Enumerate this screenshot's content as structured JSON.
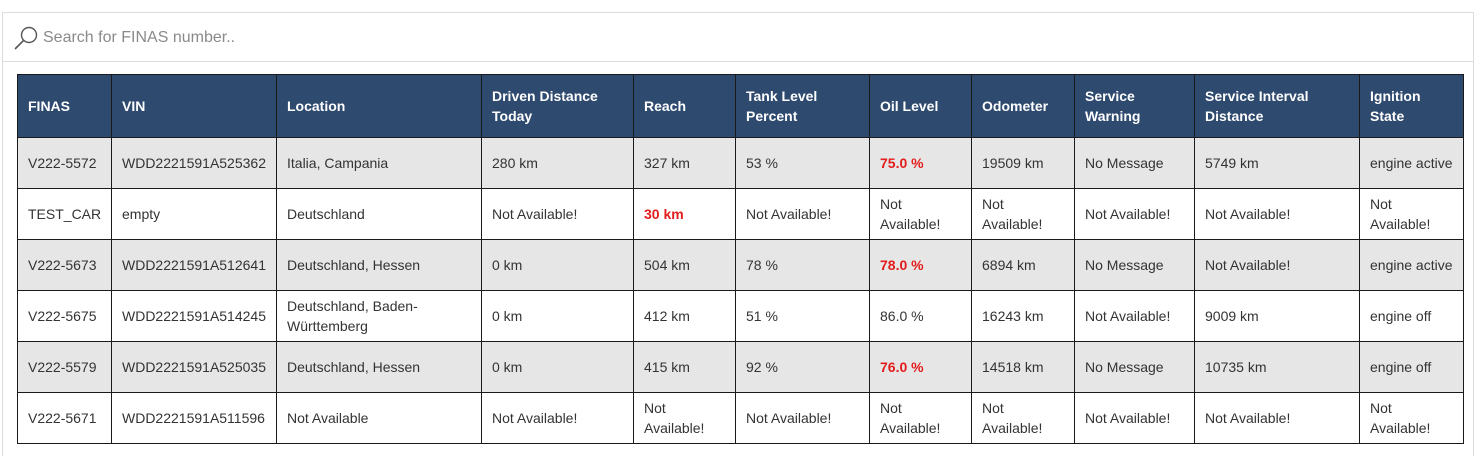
{
  "search": {
    "placeholder": "Search for FINAS number..",
    "value": "",
    "icon": "search-icon"
  },
  "table": {
    "columns": [
      "FINAS",
      "VIN",
      "Location",
      "Driven Distance Today",
      "Reach",
      "Tank Level Percent",
      "Oil Level",
      "Odometer",
      "Service Warning",
      "Service Interval Distance",
      "Ignition State"
    ],
    "warning_color": "#e31c1c",
    "header_color": "#2f4a6f",
    "rows": [
      {
        "finas": "V222-5572",
        "vin": "WDD2221591A525362",
        "location": "Italia, Campania",
        "driven_distance_today": "280 km",
        "reach": "327 km",
        "reach_warning": false,
        "tank_level_percent": "53 %",
        "oil_level": "75.0 %",
        "oil_warning": true,
        "odometer": "19509 km",
        "service_warning": "No Message",
        "service_interval_distance": "5749 km",
        "ignition_state": "engine active"
      },
      {
        "finas": "TEST_CAR",
        "vin": "empty",
        "location": "Deutschland",
        "driven_distance_today": "Not Available!",
        "reach": "30 km",
        "reach_warning": true,
        "tank_level_percent": "Not Available!",
        "oil_level": "Not Available!",
        "oil_warning": false,
        "odometer": "Not Available!",
        "service_warning": "Not Available!",
        "service_interval_distance": "Not Available!",
        "ignition_state": "Not Available!"
      },
      {
        "finas": "V222-5673",
        "vin": "WDD2221591A512641",
        "location": "Deutschland, Hessen",
        "driven_distance_today": "0 km",
        "reach": "504 km",
        "reach_warning": false,
        "tank_level_percent": "78 %",
        "oil_level": "78.0 %",
        "oil_warning": true,
        "odometer": "6894 km",
        "service_warning": "No Message",
        "service_interval_distance": "Not Available!",
        "ignition_state": "engine active"
      },
      {
        "finas": "V222-5675",
        "vin": "WDD2221591A514245",
        "location": "Deutschland, Baden-Württemberg",
        "driven_distance_today": "0 km",
        "reach": "412 km",
        "reach_warning": false,
        "tank_level_percent": "51 %",
        "oil_level": "86.0 %",
        "oil_warning": false,
        "odometer": "16243 km",
        "service_warning": "Not Available!",
        "service_interval_distance": "9009 km",
        "ignition_state": "engine off"
      },
      {
        "finas": "V222-5579",
        "vin": "WDD2221591A525035",
        "location": "Deutschland, Hessen",
        "driven_distance_today": "0 km",
        "reach": "415 km",
        "reach_warning": false,
        "tank_level_percent": "92 %",
        "oil_level": "76.0 %",
        "oil_warning": true,
        "odometer": "14518 km",
        "service_warning": "No Message",
        "service_interval_distance": "10735 km",
        "ignition_state": "engine off"
      },
      {
        "finas": "V222-5671",
        "vin": "WDD2221591A511596",
        "location": "Not Available",
        "driven_distance_today": "Not Available!",
        "reach": "Not Available!",
        "reach_warning": false,
        "tank_level_percent": "Not Available!",
        "oil_level": "Not Available!",
        "oil_warning": false,
        "odometer": "Not Available!",
        "service_warning": "Not Available!",
        "service_interval_distance": "Not Available!",
        "ignition_state": "Not Available!"
      }
    ]
  }
}
